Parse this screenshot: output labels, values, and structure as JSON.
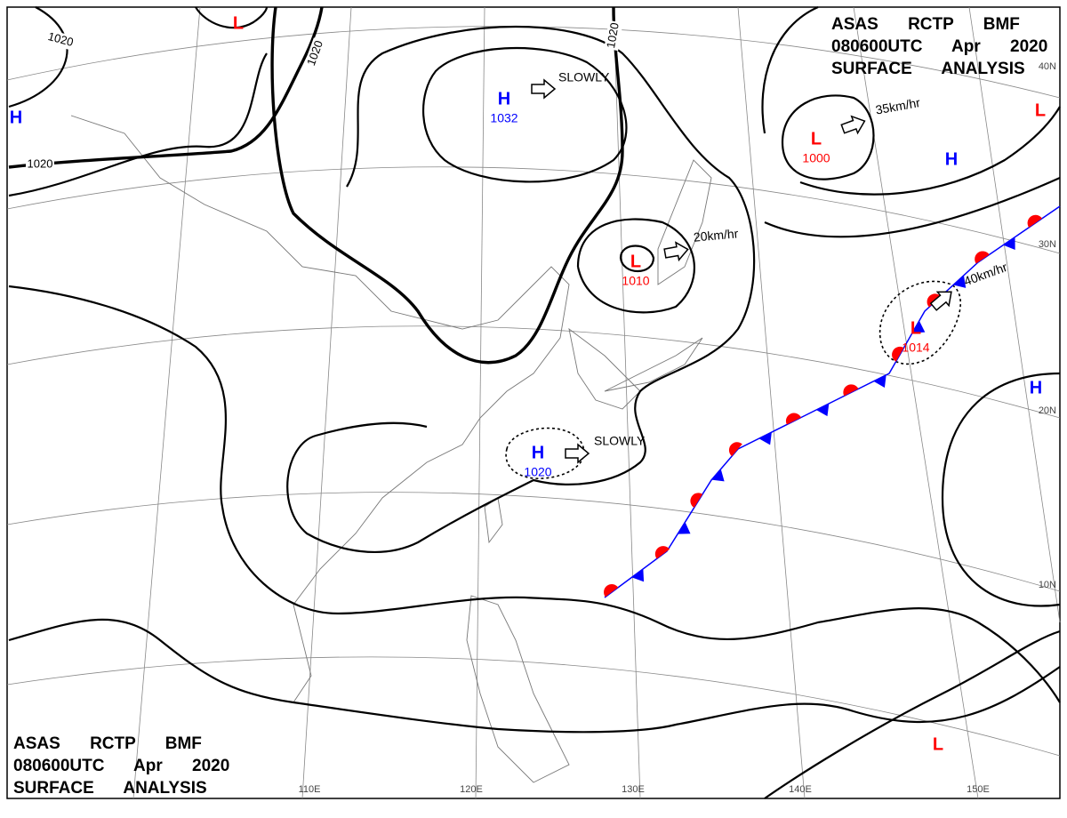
{
  "header": {
    "lines": [
      "ASAS RCTP BMF",
      "080600UTC Apr 2020",
      "SURFACE ANALYSIS"
    ]
  },
  "centers": [
    {
      "type": "H",
      "pressure": 1032
    },
    {
      "type": "L",
      "pressure": 1010
    },
    {
      "type": "L",
      "pressure": 1000
    },
    {
      "type": "L",
      "pressure": 1014
    },
    {
      "type": "H",
      "pressure": 1020
    },
    {
      "type": "H"
    },
    {
      "type": "L"
    },
    {
      "type": "H"
    },
    {
      "type": "H"
    },
    {
      "type": "L"
    },
    {
      "type": "L"
    }
  ],
  "movements": [
    "SLOWLY",
    "20km/hr",
    "35km/hr",
    "40km/hr",
    "SLOWLY"
  ],
  "isobar_labels": [
    "1020",
    "1020",
    "1020",
    "1020"
  ],
  "latitudes": [
    "40N",
    "30N",
    "20N",
    "10N"
  ],
  "longitudes": [
    "110E",
    "120E",
    "130E",
    "140E",
    "150E"
  ]
}
